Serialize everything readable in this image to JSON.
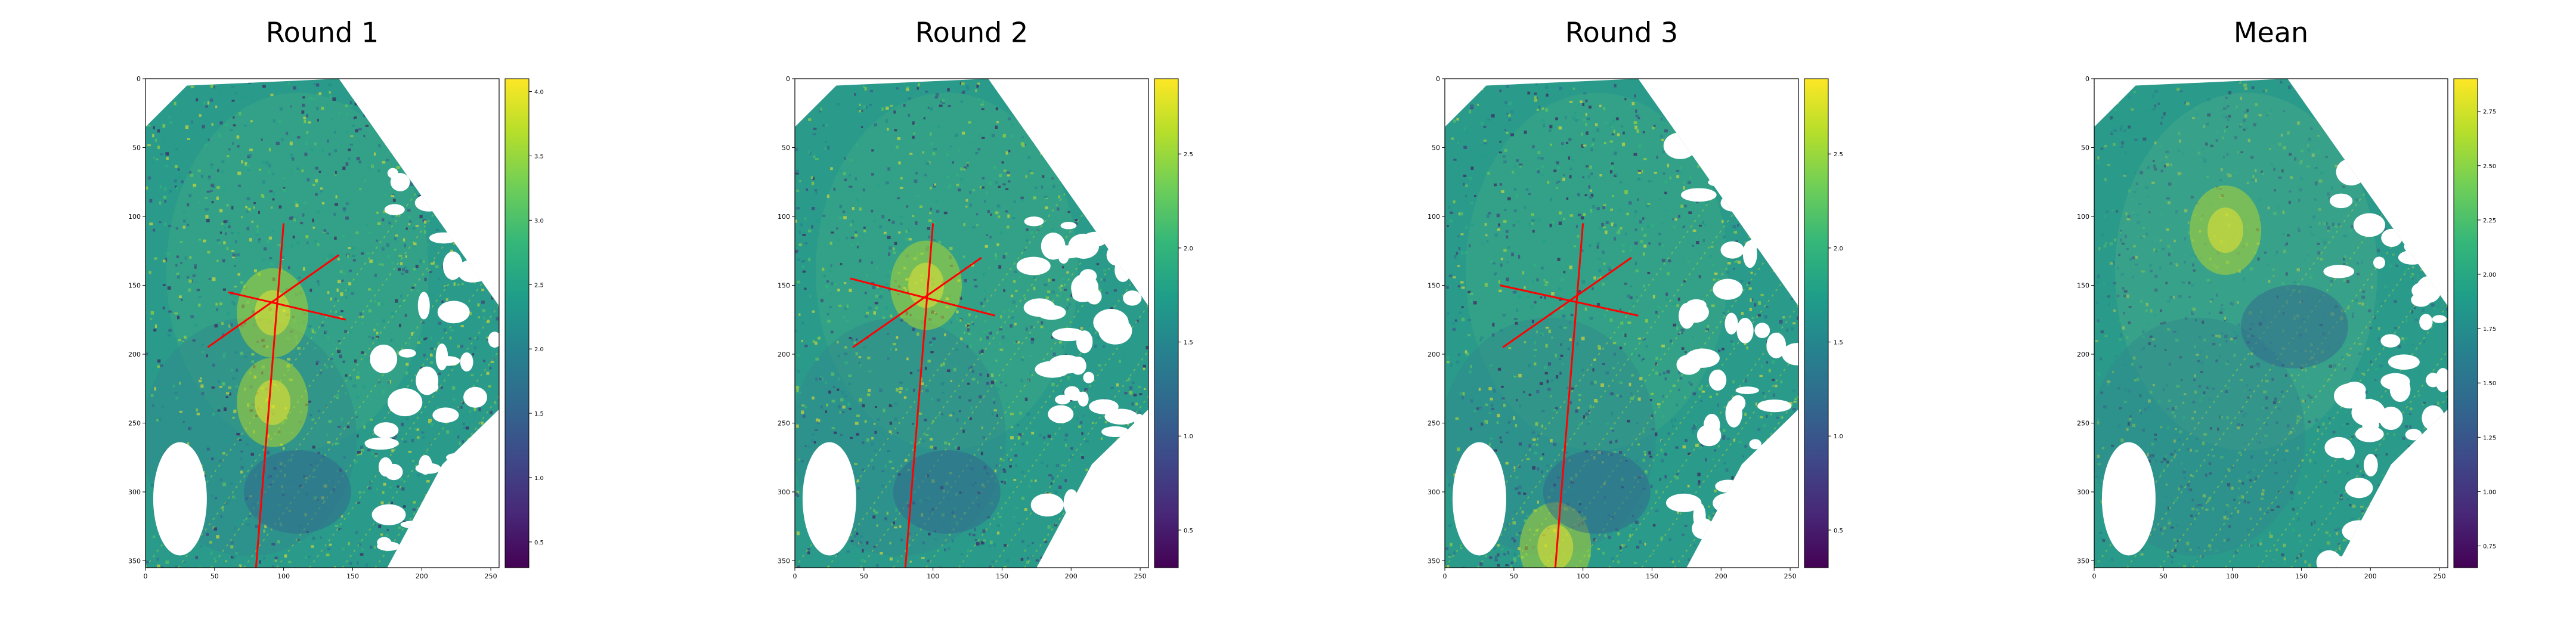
{
  "chart_data": [
    {
      "type": "heatmap",
      "title": "Round 1",
      "xlabel": "",
      "ylabel": "",
      "xlim": [
        0,
        256
      ],
      "ylim": [
        355,
        0
      ],
      "x_ticks": [
        "0",
        "50",
        "100",
        "150",
        "200",
        "250"
      ],
      "y_ticks": [
        "0",
        "50",
        "100",
        "150",
        "200",
        "250",
        "300",
        "350"
      ],
      "colormap": "viridis",
      "colorbar": {
        "min": 0.3,
        "max": 4.1,
        "ticks": [
          "0.5",
          "1.0",
          "1.5",
          "2.0",
          "2.5",
          "3.0",
          "3.5",
          "4.0"
        ]
      },
      "overlay_lines_color": "#ff0000",
      "overlay_lines": [
        {
          "from": [
            100,
            105
          ],
          "to": [
            80,
            355
          ]
        },
        {
          "from": [
            60,
            155
          ],
          "to": [
            145,
            175
          ]
        },
        {
          "from": [
            45,
            195
          ],
          "to": [
            140,
            128
          ]
        }
      ],
      "bright_spots": [
        [
          92,
          235
        ],
        [
          92,
          170
        ]
      ]
    },
    {
      "type": "heatmap",
      "title": "Round 2",
      "xlabel": "",
      "ylabel": "",
      "xlim": [
        0,
        256
      ],
      "ylim": [
        355,
        0
      ],
      "x_ticks": [
        "0",
        "50",
        "100",
        "150",
        "200",
        "250"
      ],
      "y_ticks": [
        "0",
        "50",
        "100",
        "150",
        "200",
        "250",
        "300",
        "350"
      ],
      "colormap": "viridis",
      "colorbar": {
        "min": 0.3,
        "max": 2.9,
        "ticks": [
          "0.5",
          "1.0",
          "1.5",
          "2.0",
          "2.5"
        ]
      },
      "overlay_lines_color": "#ff0000",
      "overlay_lines": [
        {
          "from": [
            100,
            105
          ],
          "to": [
            80,
            355
          ]
        },
        {
          "from": [
            40,
            145
          ],
          "to": [
            145,
            172
          ]
        },
        {
          "from": [
            42,
            195
          ],
          "to": [
            135,
            130
          ]
        }
      ],
      "bright_spots": [
        [
          95,
          150
        ]
      ]
    },
    {
      "type": "heatmap",
      "title": "Round 3",
      "xlabel": "",
      "ylabel": "",
      "xlim": [
        0,
        256
      ],
      "ylim": [
        355,
        0
      ],
      "x_ticks": [
        "0",
        "50",
        "100",
        "150",
        "200",
        "250"
      ],
      "y_ticks": [
        "0",
        "50",
        "100",
        "150",
        "200",
        "250",
        "300",
        "350"
      ],
      "colormap": "viridis",
      "colorbar": {
        "min": 0.3,
        "max": 2.9,
        "ticks": [
          "0.5",
          "1.0",
          "1.5",
          "2.0",
          "2.5"
        ]
      },
      "overlay_lines_color": "#ff0000",
      "overlay_lines": [
        {
          "from": [
            100,
            105
          ],
          "to": [
            80,
            355
          ]
        },
        {
          "from": [
            40,
            150
          ],
          "to": [
            140,
            172
          ]
        },
        {
          "from": [
            42,
            195
          ],
          "to": [
            135,
            130
          ]
        }
      ],
      "bright_spots": [
        [
          80,
          340
        ]
      ]
    },
    {
      "type": "heatmap",
      "title": "Mean",
      "xlabel": "",
      "ylabel": "",
      "xlim": [
        0,
        256
      ],
      "ylim": [
        355,
        0
      ],
      "x_ticks": [
        "0",
        "50",
        "100",
        "150",
        "200",
        "250"
      ],
      "y_ticks": [
        "0",
        "50",
        "100",
        "150",
        "200",
        "250",
        "300",
        "350"
      ],
      "colormap": "viridis",
      "colorbar": {
        "min": 0.65,
        "max": 2.9,
        "ticks": [
          "0.75",
          "1.00",
          "1.25",
          "1.50",
          "1.75",
          "2.00",
          "2.25",
          "2.50",
          "2.75"
        ]
      },
      "overlay_lines_color": "",
      "overlay_lines": [],
      "bright_spots": [
        [
          95,
          110
        ]
      ]
    }
  ]
}
